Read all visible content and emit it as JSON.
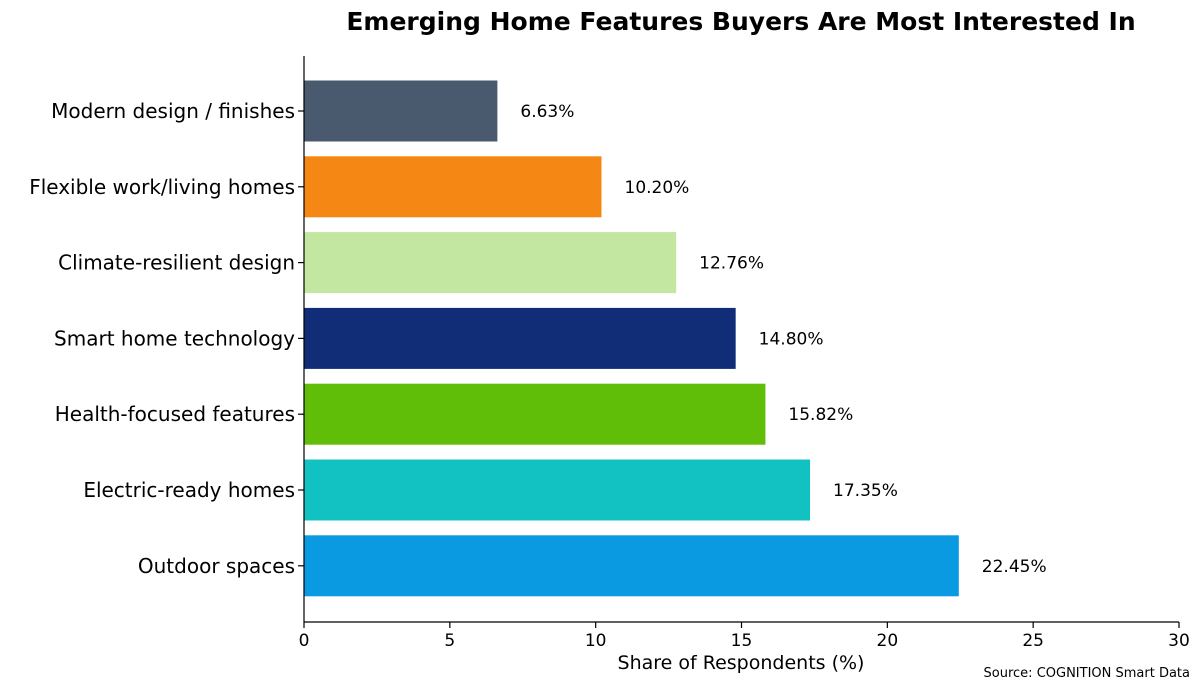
{
  "chart_data": {
    "type": "bar",
    "orientation": "horizontal",
    "title": "Emerging Home Features Buyers Are Most Interested In",
    "xlabel": "Share of Respondents (%)",
    "ylabel": "",
    "xlim": [
      0,
      30
    ],
    "xticks": [
      0,
      5,
      10,
      15,
      20,
      25,
      30
    ],
    "grid": false,
    "categories": [
      "Modern design / finishes",
      "Flexible work/living homes",
      "Climate-resilient design",
      "Smart home technology",
      "Health-focused features",
      "Electric-ready homes",
      "Outdoor spaces"
    ],
    "values": [
      6.63,
      10.2,
      12.76,
      14.8,
      15.82,
      17.35,
      22.45
    ],
    "value_labels": [
      "6.63%",
      "10.20%",
      "12.76%",
      "14.80%",
      "15.82%",
      "17.35%",
      "22.45%"
    ],
    "colors": [
      "#4a5a6e",
      "#f58714",
      "#c3e6a0",
      "#122d78",
      "#60bd08",
      "#12c2c2",
      "#0a9ae2"
    ]
  },
  "source": "Source: COGNITION Smart Data"
}
